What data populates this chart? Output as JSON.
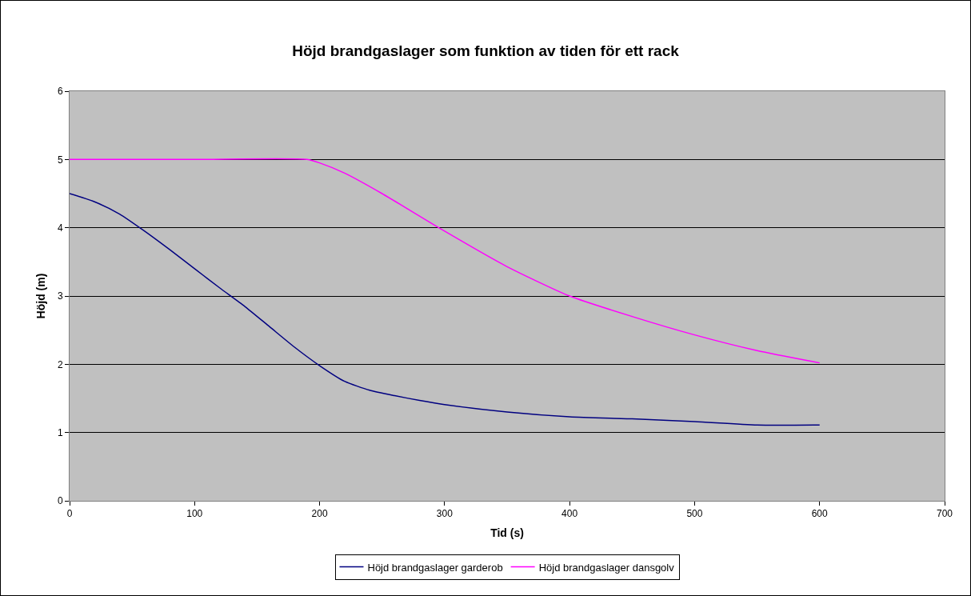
{
  "chart_data": {
    "type": "line",
    "title": "Höjd brandgaslager som funktion av tiden för ett rack",
    "xlabel": "Tid (s)",
    "ylabel": "Höjd (m)",
    "xlim": [
      0,
      700
    ],
    "xticks": [
      0,
      100,
      200,
      300,
      400,
      500,
      600,
      700
    ],
    "ylim": [
      0,
      6
    ],
    "yticks": [
      0,
      1,
      2,
      3,
      4,
      5,
      6
    ],
    "grid": "y",
    "legend": "bottom",
    "marker": "none",
    "line_style": "solid",
    "series": [
      {
        "name": "Höjd brandgaslager garderob",
        "color": "#000080",
        "x": [
          0,
          20,
          40,
          60,
          80,
          100,
          120,
          140,
          160,
          180,
          200,
          220,
          240,
          260,
          280,
          300,
          350,
          400,
          450,
          500,
          550,
          600
        ],
        "values": [
          4.5,
          4.38,
          4.2,
          3.95,
          3.68,
          3.4,
          3.12,
          2.85,
          2.55,
          2.25,
          1.98,
          1.75,
          1.62,
          1.54,
          1.47,
          1.41,
          1.3,
          1.23,
          1.2,
          1.16,
          1.11,
          1.11
        ]
      },
      {
        "name": "Höjd brandgaslager dansgolv",
        "color": "#ff00ff",
        "x": [
          0,
          100,
          190,
          200,
          220,
          250,
          300,
          350,
          400,
          450,
          500,
          550,
          600
        ],
        "values": [
          5,
          5,
          5,
          4.95,
          4.8,
          4.5,
          3.95,
          3.43,
          3,
          2.7,
          2.43,
          2.2,
          2.02
        ]
      }
    ]
  }
}
